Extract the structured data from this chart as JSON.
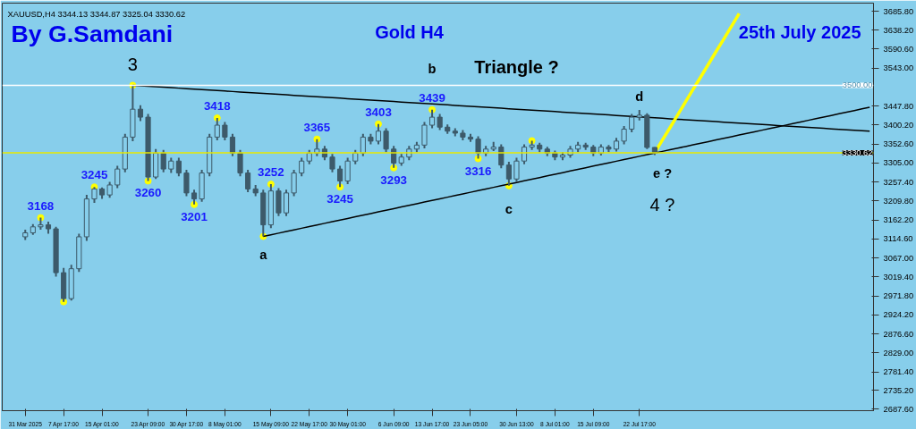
{
  "chart_data": {
    "type": "candlestick",
    "title": "Gold H4",
    "annotations": [
      "XAUUSD,H4 3344.13 3344.87 3325.04 3330.62",
      "By G.Samdani",
      "25th July 2025",
      "Triangle ?",
      "3",
      "a",
      "b",
      "c",
      "d",
      "e ?",
      "4 ?"
    ],
    "color": "#3d5a6a",
    "categories": [
      "31 Mar 2025",
      null,
      null,
      null,
      null,
      "7 Apr 17:00",
      null,
      null,
      null,
      null,
      "15 Apr 01:00",
      null,
      null,
      null,
      null,
      null,
      "23 Apr 09:00",
      null,
      null,
      null,
      null,
      "30 Apr 17:00",
      null,
      null,
      null,
      null,
      "8 May 01:00",
      null,
      null,
      null,
      null,
      null,
      "15 May 09:00",
      null,
      null,
      null,
      null,
      "22 May 17:00",
      null,
      null,
      null,
      null,
      "30 May 01:00",
      null,
      null,
      null,
      null,
      null,
      "6 Jun 09:00",
      null,
      null,
      null,
      null,
      "13 Jun 17:00",
      null,
      null,
      null,
      null,
      "23 Jun 05:00",
      null,
      null,
      null,
      null,
      null,
      "30 Jun 13:00",
      null,
      null,
      null,
      null,
      "8 Jul 01:00",
      null,
      null,
      null,
      null,
      "15 Jul 09:00",
      null,
      null,
      null,
      null,
      null,
      "22 Jul 17:00",
      null,
      null,
      null,
      null,
      null,
      null,
      null,
      null,
      null,
      null,
      null,
      null,
      null,
      null,
      null,
      null,
      null,
      null,
      null,
      null,
      null,
      null,
      null,
      null,
      null,
      null,
      null,
      null,
      null,
      null
    ],
    "ohlc": [
      [
        3120,
        3138,
        3112,
        3130
      ],
      [
        3130,
        3152,
        3125,
        3145
      ],
      [
        3145,
        3168,
        3138,
        3150
      ],
      [
        3150,
        3158,
        3128,
        3140
      ],
      [
        3140,
        3145,
        3020,
        3030
      ],
      [
        3030,
        3042,
        2957,
        2965
      ],
      [
        2965,
        3050,
        2960,
        3040
      ],
      [
        3040,
        3128,
        3032,
        3120
      ],
      [
        3120,
        3225,
        3110,
        3215
      ],
      [
        3215,
        3245,
        3205,
        3240
      ],
      [
        3240,
        3244,
        3215,
        3225
      ],
      [
        3225,
        3258,
        3218,
        3250
      ],
      [
        3250,
        3298,
        3242,
        3290
      ],
      [
        3290,
        3378,
        3282,
        3370
      ],
      [
        3370,
        3500,
        3360,
        3440
      ],
      [
        3440,
        3450,
        3410,
        3420
      ],
      [
        3420,
        3428,
        3260,
        3270
      ],
      [
        3270,
        3340,
        3265,
        3330
      ],
      [
        3330,
        3338,
        3282,
        3290
      ],
      [
        3290,
        3318,
        3280,
        3310
      ],
      [
        3310,
        3318,
        3272,
        3280
      ],
      [
        3280,
        3288,
        3222,
        3230
      ],
      [
        3230,
        3238,
        3201,
        3215
      ],
      [
        3215,
        3288,
        3208,
        3280
      ],
      [
        3280,
        3378,
        3272,
        3370
      ],
      [
        3370,
        3418,
        3362,
        3400
      ],
      [
        3400,
        3408,
        3362,
        3370
      ],
      [
        3370,
        3378,
        3322,
        3330
      ],
      [
        3330,
        3338,
        3272,
        3280
      ],
      [
        3280,
        3288,
        3232,
        3240
      ],
      [
        3240,
        3250,
        3222,
        3230
      ],
      [
        3230,
        3238,
        3121,
        3150
      ],
      [
        3150,
        3252,
        3142,
        3235
      ],
      [
        3235,
        3242,
        3172,
        3180
      ],
      [
        3180,
        3238,
        3172,
        3230
      ],
      [
        3230,
        3288,
        3222,
        3280
      ],
      [
        3280,
        3318,
        3272,
        3310
      ],
      [
        3310,
        3338,
        3302,
        3330
      ],
      [
        3330,
        3365,
        3322,
        3340
      ],
      [
        3340,
        3348,
        3312,
        3320
      ],
      [
        3320,
        3328,
        3282,
        3290
      ],
      [
        3290,
        3298,
        3245,
        3260
      ],
      [
        3260,
        3318,
        3252,
        3310
      ],
      [
        3310,
        3338,
        3302,
        3330
      ],
      [
        3330,
        3378,
        3322,
        3370
      ],
      [
        3370,
        3378,
        3352,
        3360
      ],
      [
        3360,
        3403,
        3352,
        3385
      ],
      [
        3385,
        3392,
        3332,
        3340
      ],
      [
        3340,
        3348,
        3293,
        3305
      ],
      [
        3305,
        3328,
        3298,
        3320
      ],
      [
        3320,
        3348,
        3312,
        3340
      ],
      [
        3340,
        3358,
        3332,
        3350
      ],
      [
        3350,
        3408,
        3342,
        3400
      ],
      [
        3400,
        3439,
        3392,
        3420
      ],
      [
        3420,
        3428,
        3388,
        3395
      ],
      [
        3395,
        3402,
        3378,
        3385
      ],
      [
        3385,
        3392,
        3372,
        3380
      ],
      [
        3380,
        3388,
        3362,
        3370
      ],
      [
        3370,
        3378,
        3358,
        3365
      ],
      [
        3365,
        3372,
        3316,
        3330
      ],
      [
        3330,
        3348,
        3322,
        3340
      ],
      [
        3340,
        3358,
        3335,
        3345
      ],
      [
        3345,
        3352,
        3292,
        3300
      ],
      [
        3300,
        3308,
        3248,
        3265
      ],
      [
        3265,
        3318,
        3258,
        3310
      ],
      [
        3310,
        3352,
        3302,
        3345
      ],
      [
        3345,
        3361,
        3338,
        3350
      ],
      [
        3350,
        3356,
        3332,
        3340
      ],
      [
        3340,
        3346,
        3322,
        3330
      ],
      [
        3330,
        3336,
        3312,
        3320
      ],
      [
        3320,
        3332,
        3312,
        3325
      ],
      [
        3325,
        3348,
        3318,
        3340
      ],
      [
        3340,
        3358,
        3332,
        3350
      ],
      [
        3350,
        3356,
        3338,
        3345
      ],
      [
        3345,
        3350,
        3322,
        3330
      ],
      [
        3330,
        3352,
        3324,
        3345
      ],
      [
        3345,
        3350,
        3332,
        3340
      ],
      [
        3340,
        3368,
        3334,
        3360
      ],
      [
        3360,
        3398,
        3352,
        3390
      ],
      [
        3390,
        3428,
        3382,
        3420
      ],
      [
        3420,
        3438,
        3412,
        3425
      ],
      [
        3425,
        3430,
        3340,
        3344.13
      ],
      [
        3344.13,
        3344.87,
        3325.04,
        3330.62
      ],
      null,
      null,
      null,
      null,
      null,
      null,
      null,
      null,
      null,
      null,
      null,
      null,
      null,
      null,
      null,
      null,
      null,
      null,
      null,
      null,
      null,
      null,
      null,
      null,
      null,
      null,
      null,
      null
    ],
    "series": [
      {
        "type": "scatter",
        "color": "#ffff00",
        "values": [
          null,
          null,
          3168,
          null,
          null,
          2957,
          null,
          null,
          null,
          3245,
          null,
          null,
          null,
          null,
          3500,
          null,
          3260,
          null,
          null,
          null,
          null,
          null,
          3201,
          null,
          null,
          3418,
          null,
          null,
          null,
          null,
          null,
          3121,
          3252,
          null,
          null,
          null,
          null,
          null,
          3365,
          null,
          null,
          3245,
          null,
          null,
          null,
          null,
          3403,
          null,
          3293,
          null,
          null,
          null,
          null,
          3439,
          null,
          null,
          null,
          null,
          null,
          3316,
          null,
          null,
          null,
          3248,
          null,
          null,
          3361,
          null,
          null,
          null,
          null,
          null,
          null,
          null,
          null,
          null,
          null,
          null,
          null,
          null,
          null,
          null,
          null,
          null,
          null,
          null,
          null,
          null,
          null,
          null,
          null,
          null,
          null,
          null,
          null,
          null,
          null,
          null,
          null,
          null,
          null,
          null,
          null,
          null,
          null,
          null,
          null,
          null,
          null,
          null,
          null
        ],
        "value_labels": [
          null,
          null,
          "3168",
          null,
          null,
          null,
          null,
          null,
          null,
          "3245",
          null,
          null,
          null,
          null,
          null,
          null,
          "3260",
          null,
          null,
          null,
          null,
          null,
          "3201",
          null,
          null,
          "3418",
          null,
          null,
          null,
          null,
          null,
          null,
          "3252",
          null,
          null,
          null,
          null,
          null,
          "3365",
          null,
          null,
          "3245",
          null,
          null,
          null,
          null,
          "3403",
          null,
          "3293",
          null,
          null,
          null,
          null,
          "3439",
          null,
          null,
          null,
          null,
          null,
          "3316",
          null,
          null,
          null,
          null,
          null,
          null,
          null,
          null,
          null,
          null,
          null,
          null,
          null,
          null,
          null,
          null,
          null,
          null,
          null,
          null,
          null,
          null,
          null,
          null,
          null,
          null,
          null,
          null,
          null,
          null,
          null,
          null,
          null,
          null,
          null,
          null,
          null,
          null,
          null,
          null,
          null,
          null,
          null,
          null,
          null,
          null,
          null,
          null,
          null,
          null,
          null
        ]
      },
      {
        "type": "line",
        "color": "#000000",
        "values": [
          null,
          null,
          null,
          null,
          null,
          null,
          null,
          null,
          null,
          null,
          null,
          null,
          null,
          null,
          3500,
          3498.8,
          3497.6,
          3496.4,
          3495.2,
          3494,
          3492.8,
          3491.6,
          3490.4,
          3489.2,
          3488,
          3486.8,
          3485.6,
          3484.4,
          3483.2,
          3482,
          3480.8,
          3479.6,
          3478.4,
          3477.2,
          3476,
          3474.8,
          3473.6,
          3472.4,
          3471.2,
          3470,
          3468.8,
          3467.6,
          3466.4,
          3465.2,
          3464,
          3462.8,
          3461.6,
          3460.4,
          3459.2,
          3458,
          3456.8,
          3455.6,
          3454.4,
          3453.2,
          3452,
          3450.8,
          3449.6,
          3448.4,
          3447.2,
          3446,
          3444.8,
          3443.6,
          3442.4,
          3441.2,
          3440,
          3438.8,
          3437.6,
          3436.4,
          3435.2,
          3434,
          3432.8,
          3431.6,
          3430.4,
          3429.2,
          3428,
          3426.8,
          3425.6,
          3424.4,
          3423.2,
          3422,
          3420.8,
          3419.6,
          3418.4,
          3417.2,
          3416,
          3414.8,
          3413.6,
          3412.4,
          3411.2,
          3410,
          3408.8,
          3407.6,
          3406.4,
          3405.2,
          3404,
          3402.8,
          3401.6,
          3400.4,
          3399.2,
          3398,
          3396.8,
          3395.6,
          3394.4,
          3393.2,
          3392,
          3390.8,
          3389.6,
          3388.4,
          3387.2,
          3386,
          3384.8
        ]
      },
      {
        "type": "line",
        "color": "#000000",
        "values": [
          null,
          null,
          null,
          null,
          null,
          null,
          null,
          null,
          null,
          null,
          null,
          null,
          null,
          null,
          null,
          null,
          null,
          null,
          null,
          null,
          null,
          null,
          null,
          null,
          null,
          null,
          null,
          null,
          null,
          null,
          null,
          3121,
          3125.1,
          3129.2,
          3133.3,
          3137.4,
          3141.5,
          3145.6,
          3149.7,
          3153.8,
          3157.9,
          3162,
          3166.1,
          3170.2,
          3174.3,
          3178.4,
          3182.5,
          3186.6,
          3190.7,
          3194.8,
          3198.9,
          3203,
          3207.1,
          3211.2,
          3215.3,
          3219.4,
          3223.5,
          3227.6,
          3231.7,
          3235.8,
          3239.9,
          3244,
          3248.1,
          3252.2,
          3256.3,
          3260.4,
          3264.5,
          3268.6,
          3272.7,
          3276.8,
          3280.9,
          3285,
          3289.1,
          3293.2,
          3297.3,
          3301.4,
          3305.5,
          3309.6,
          3313.7,
          3317.8,
          3321.9,
          3326,
          3330.1,
          3334.2,
          3338.3,
          3342.4,
          3346.5,
          3350.6,
          3354.7,
          3358.8,
          3362.9,
          3367,
          3371.1,
          3375.2,
          3379.3,
          3383.4,
          3387.5,
          3391.6,
          3395.7,
          3399.8,
          3403.9,
          3408,
          3412.1,
          3416.2,
          3420.3,
          3424.4,
          3428.5,
          3432.6,
          3436.7,
          3440.8,
          3444.9
        ]
      },
      {
        "type": "line",
        "color": "#ffff00",
        "values": [
          null,
          null,
          null,
          null,
          null,
          null,
          null,
          null,
          null,
          null,
          null,
          null,
          null,
          null,
          null,
          null,
          null,
          null,
          null,
          null,
          null,
          null,
          null,
          null,
          null,
          null,
          null,
          null,
          null,
          null,
          null,
          null,
          null,
          null,
          null,
          null,
          null,
          null,
          null,
          null,
          null,
          null,
          null,
          null,
          null,
          null,
          null,
          null,
          null,
          null,
          null,
          null,
          null,
          null,
          null,
          null,
          null,
          null,
          null,
          null,
          null,
          null,
          null,
          null,
          null,
          null,
          null,
          null,
          null,
          null,
          null,
          null,
          null,
          null,
          null,
          null,
          null,
          null,
          null,
          null,
          null,
          null,
          3331,
          3363,
          3394,
          3426,
          3458,
          3490,
          3521,
          3553,
          3585,
          3616,
          3648,
          3680,
          null,
          null,
          null,
          null,
          null,
          null,
          null,
          null,
          null,
          null,
          null,
          null,
          null,
          null,
          null,
          null,
          null
        ]
      }
    ],
    "ref_lines": [
      {
        "axis": "y",
        "value": 3500,
        "label": "3500.00",
        "color": "#ffffff"
      },
      {
        "axis": "y",
        "value": 3330.62,
        "label": "3330.62",
        "color": "#e8e800"
      }
    ],
    "ylim": [
      2684,
      3706
    ],
    "yticks": [
      {
        "value": 3685.8,
        "label": "3685.80"
      },
      {
        "value": 3638.2,
        "label": "3638.20"
      },
      {
        "value": 3590.6,
        "label": "3590.60"
      },
      {
        "value": 3543,
        "label": "3543.00"
      },
      {
        "value": 3447.8,
        "label": "3447.80"
      },
      {
        "value": 3400.2,
        "label": "3400.20"
      },
      {
        "value": 3352.6,
        "label": "3352.60"
      },
      {
        "value": 3305,
        "label": "3305.00"
      },
      {
        "value": 3257.4,
        "label": "3257.40"
      },
      {
        "value": 3209.8,
        "label": "3209.80"
      },
      {
        "value": 3162.2,
        "label": "3162.20"
      },
      {
        "value": 3114.6,
        "label": "3114.60"
      },
      {
        "value": 3067,
        "label": "3067.00"
      },
      {
        "value": 3019.4,
        "label": "3019.40"
      },
      {
        "value": 2971.8,
        "label": "2971.80"
      },
      {
        "value": 2924.2,
        "label": "2924.20"
      },
      {
        "value": 2876.6,
        "label": "2876.60"
      },
      {
        "value": 2829,
        "label": "2829.00"
      },
      {
        "value": 2781.4,
        "label": "2781.40"
      },
      {
        "value": 2735.2,
        "label": "2735.20"
      },
      {
        "value": 2687.6,
        "label": "2687.60"
      }
    ]
  }
}
